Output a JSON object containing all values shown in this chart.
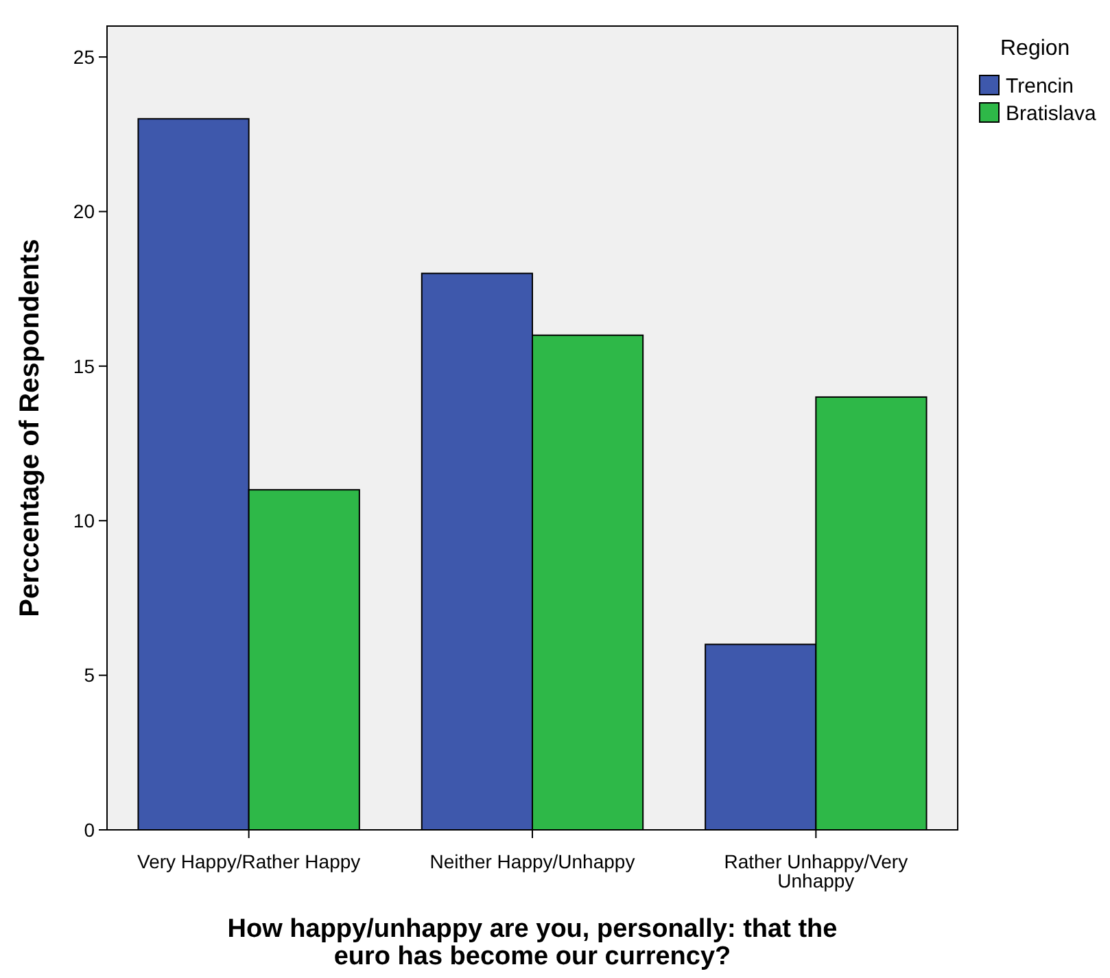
{
  "chart_data": {
    "type": "bar",
    "xlabel": "How happy/unhappy are you, personally: that the euro has become our currency?",
    "ylabel": "Perccentage of Respondents",
    "legend_title": "Region",
    "categories": [
      "Very Happy/Rather Happy",
      "Neither Happy/Unhappy",
      "Rather Unhappy/Very Unhappy"
    ],
    "series": [
      {
        "name": "Trencin",
        "color": "#3e58ac",
        "values": [
          23,
          18,
          6
        ]
      },
      {
        "name": "Bratislava",
        "color": "#2eb848",
        "values": [
          11,
          16,
          14
        ]
      }
    ],
    "ylim": [
      0,
      26
    ],
    "yticks": [
      0,
      5,
      10,
      15,
      20,
      25
    ],
    "grid": false,
    "legend": "top right"
  }
}
